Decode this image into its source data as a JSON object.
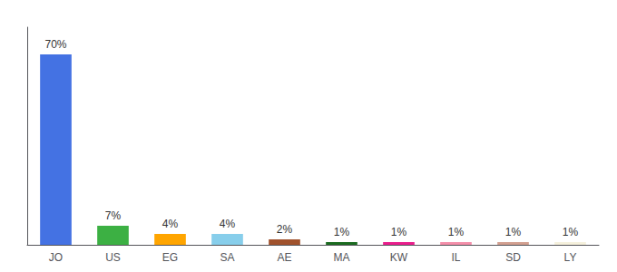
{
  "chart_data": {
    "type": "bar",
    "categories": [
      "JO",
      "US",
      "EG",
      "SA",
      "AE",
      "MA",
      "KW",
      "IL",
      "SD",
      "LY"
    ],
    "values": [
      70,
      7,
      4,
      4,
      2,
      1,
      1,
      1,
      1,
      1
    ],
    "value_labels": [
      "70%",
      "7%",
      "4%",
      "4%",
      "2%",
      "1%",
      "1%",
      "1%",
      "1%",
      "1%"
    ],
    "colors": [
      "#4472E3",
      "#3CB043",
      "#FFA500",
      "#87CEEB",
      "#A0522D",
      "#1B6B20",
      "#E91E8C",
      "#F48FAA",
      "#D2A090",
      "#F5F0DC"
    ],
    "ylim": [
      0,
      80
    ],
    "data_labels": true,
    "tick_labels": "x",
    "grid": false
  }
}
